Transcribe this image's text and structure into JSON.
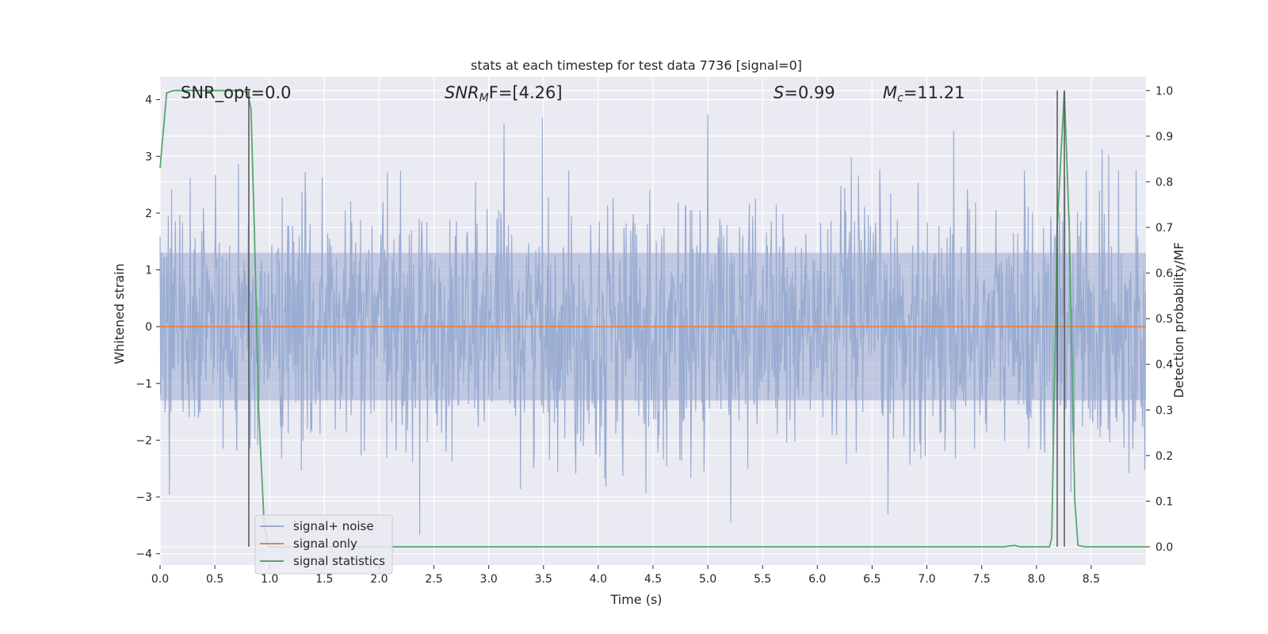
{
  "chart_data": {
    "type": "line",
    "title": "stats at each timestep for test data 7736 [signal=0]",
    "xlabel": "Time (s)",
    "ylabel": "Whitened strain",
    "ylabel_right": "Detection probability/MF",
    "xlim": [
      0.0,
      9.0
    ],
    "ylim": [
      -4.2,
      4.4
    ],
    "ylim_right": [
      -0.04,
      1.03
    ],
    "x_ticks": [
      0.0,
      0.5,
      1.0,
      1.5,
      2.0,
      2.5,
      3.0,
      3.5,
      4.0,
      4.5,
      5.0,
      5.5,
      6.0,
      6.5,
      7.0,
      7.5,
      8.0,
      8.5
    ],
    "x_tick_labels": [
      "0.0",
      "0.5",
      "1.0",
      "1.5",
      "2.0",
      "2.5",
      "3.0",
      "3.5",
      "4.0",
      "4.5",
      "5.0",
      "5.5",
      "6.0",
      "6.5",
      "7.0",
      "7.5",
      "8.0",
      "8.5"
    ],
    "y_ticks": [
      -4,
      -3,
      -2,
      -1,
      0,
      1,
      2,
      3,
      4
    ],
    "y_tick_labels": [
      "−4",
      "−3",
      "−2",
      "−1",
      "0",
      "1",
      "2",
      "3",
      "4"
    ],
    "y_ticks_right": [
      0.0,
      0.1,
      0.2,
      0.3,
      0.4,
      0.5,
      0.6,
      0.7,
      0.8,
      0.9,
      1.0
    ],
    "y_tick_labels_right": [
      "0.0",
      "0.1",
      "0.2",
      "0.3",
      "0.4",
      "0.5",
      "0.6",
      "0.7",
      "0.8",
      "0.9",
      "1.0"
    ],
    "grid": true,
    "legend_placement": "lower-left",
    "annotations": {
      "snr_opt": "SNR_opt=0.0",
      "snr_mf_label": "SNR",
      "snr_mf_sub": "M",
      "snr_mf_rest": "F=[4.26]",
      "s_label": "S",
      "s_rest": "=0.99",
      "mc_label": "M",
      "mc_sub": "c",
      "mc_rest": "=11.21"
    },
    "series": [
      {
        "name": "signal+ noise",
        "color": "#9aacd1",
        "kind": "noise",
        "axis": "left",
        "note_range": [
          -3.7,
          4.0
        ]
      },
      {
        "name": "signal only",
        "color": "#dd8452",
        "axis": "left",
        "points": [
          [
            0.0,
            0.0
          ],
          [
            9.0,
            0.0
          ]
        ]
      },
      {
        "name": "signal statistics",
        "color": "#55a868",
        "axis": "right",
        "points": [
          [
            0.0,
            0.83
          ],
          [
            0.06,
            0.995
          ],
          [
            0.12,
            1.0
          ],
          [
            0.2,
            1.0
          ],
          [
            0.5,
            1.0
          ],
          [
            0.74,
            1.0
          ],
          [
            0.8,
            0.995
          ],
          [
            0.83,
            0.96
          ],
          [
            0.86,
            0.7
          ],
          [
            0.9,
            0.3
          ],
          [
            0.95,
            0.05
          ],
          [
            0.99,
            0.0
          ],
          [
            3.0,
            0.0
          ],
          [
            6.0,
            0.0
          ],
          [
            7.7,
            0.0
          ],
          [
            7.8,
            0.003
          ],
          [
            7.85,
            0.0
          ],
          [
            8.12,
            0.0
          ],
          [
            8.14,
            0.02
          ],
          [
            8.19,
            0.7
          ],
          [
            8.255,
            1.0
          ],
          [
            8.3,
            0.7
          ],
          [
            8.35,
            0.1
          ],
          [
            8.38,
            0.003
          ],
          [
            8.45,
            0.0
          ],
          [
            9.0,
            0.0
          ]
        ]
      }
    ],
    "vertical_markers": [
      0.81,
      8.19,
      8.255
    ]
  }
}
